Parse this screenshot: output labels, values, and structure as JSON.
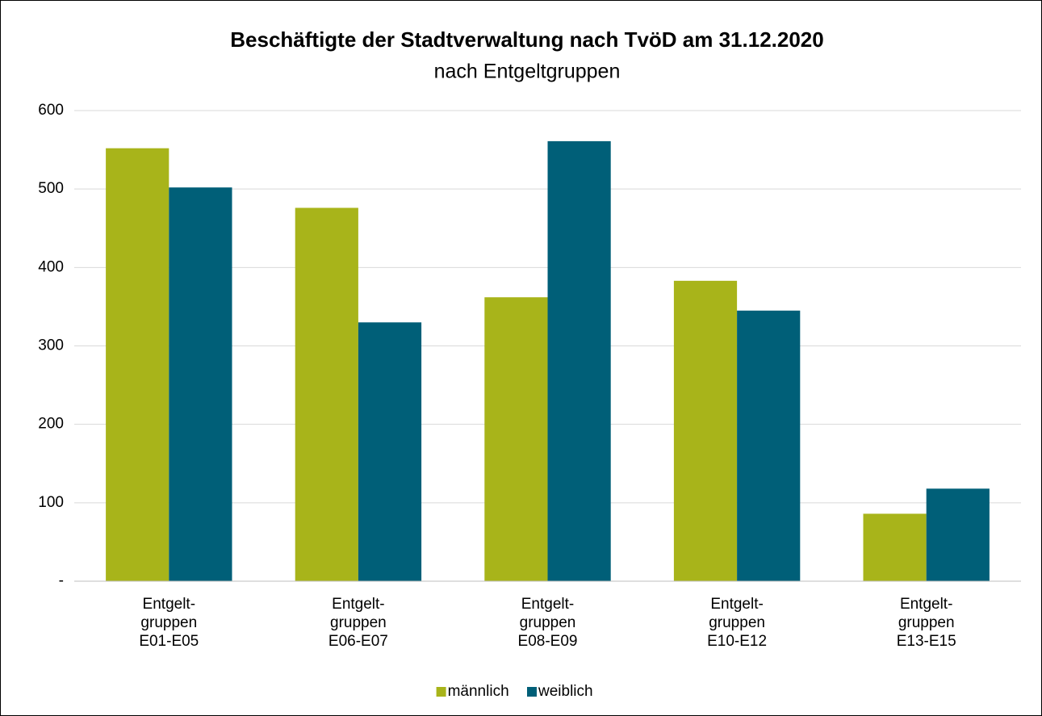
{
  "chart_data": {
    "type": "bar",
    "title": "Beschäftigte der Stadtverwaltung nach TvöD am 31.12.2020",
    "subtitle": "nach Entgeltgruppen",
    "categories": [
      "Entgelt-\ngruppen\nE01-E05",
      "Entgelt-\ngruppen\nE06-E07",
      "Entgelt-\ngruppen\nE08-E09",
      "Entgelt-\ngruppen\nE10-E12",
      "Entgelt-\ngruppen\nE13-E15"
    ],
    "series": [
      {
        "name": "männlich",
        "color": "#a8b41a",
        "values": [
          552,
          476,
          362,
          383,
          86
        ]
      },
      {
        "name": "weiblich",
        "color": "#005f78",
        "values": [
          502,
          330,
          561,
          345,
          118
        ]
      }
    ],
    "ylim": [
      0,
      600
    ],
    "yticks": [
      {
        "value": 0,
        "label": "-"
      },
      100,
      200,
      300,
      400,
      500,
      600
    ],
    "grid": true,
    "legend": "bottom"
  }
}
